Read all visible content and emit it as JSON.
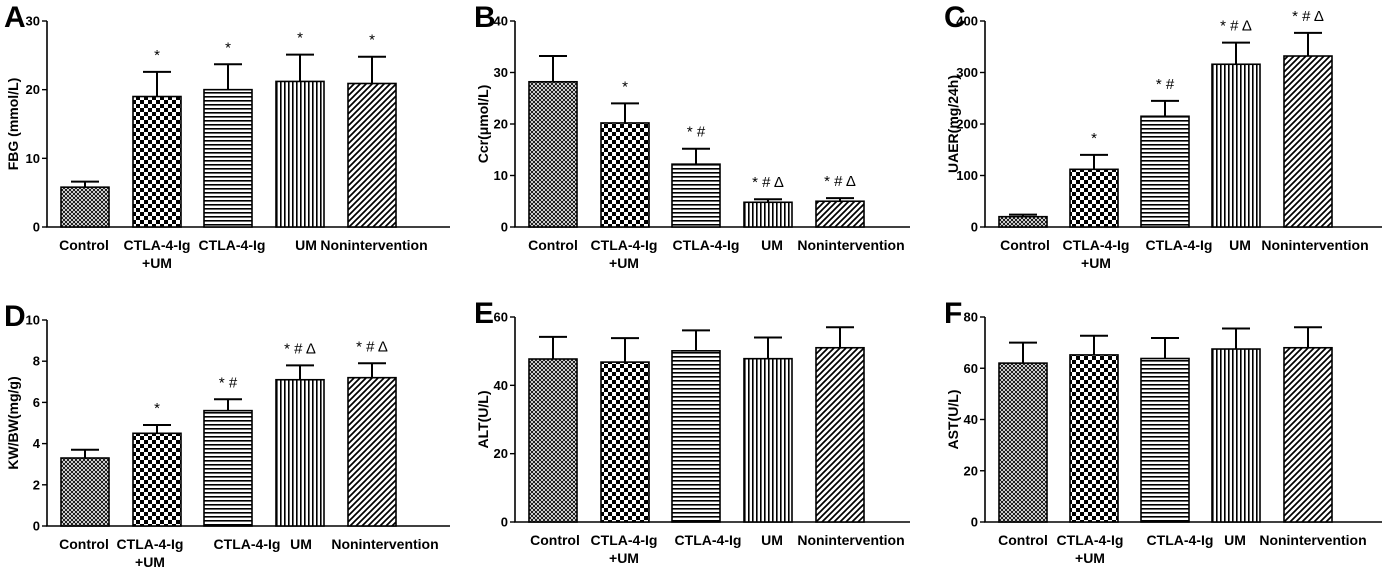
{
  "figure": {
    "legend_markers": {
      "significance_vs_control": "*",
      "significance_vs_ctla": "#",
      "significance_vs_um": "Δ"
    }
  },
  "bar_patterns": [
    "crosshatch-fine",
    "checkerboard",
    "horizontal-lines",
    "vertical-lines",
    "diagonal-lines"
  ],
  "chart_data": [
    {
      "panel": "A",
      "type": "bar",
      "title": "",
      "xlabel": "",
      "ylabel": "FBG (mmol/L)",
      "ylim": [
        0,
        30
      ],
      "yticks": [
        0,
        10,
        20,
        30
      ],
      "categories": [
        [
          "Control"
        ],
        [
          "CTLA-4-Ig",
          "+UM"
        ],
        [
          "CTLA-4-Ig"
        ],
        [
          "UM"
        ],
        [
          "Nonintervention"
        ]
      ],
      "values": [
        5.8,
        19,
        20,
        21.2,
        20.9
      ],
      "errors": [
        0.8,
        3.6,
        3.7,
        3.9,
        3.9
      ],
      "annotations": [
        "",
        "*",
        "*",
        "*",
        "*"
      ]
    },
    {
      "panel": "B",
      "type": "bar",
      "title": "",
      "xlabel": "",
      "ylabel": "Ccr(μmol/L)",
      "ylim": [
        0,
        40
      ],
      "yticks": [
        0,
        10,
        20,
        30,
        40
      ],
      "categories": [
        [
          "Control"
        ],
        [
          "CTLA-4-Ig",
          "+UM"
        ],
        [
          "CTLA-4-Ig"
        ],
        [
          "UM"
        ],
        [
          "Nonintervention"
        ]
      ],
      "values": [
        28.2,
        20.2,
        12.2,
        4.8,
        5
      ],
      "errors": [
        5,
        3.8,
        3,
        0.6,
        0.6
      ],
      "annotations": [
        "",
        "*",
        "*  #",
        "* # Δ",
        "* # Δ"
      ]
    },
    {
      "panel": "C",
      "type": "bar",
      "title": "",
      "xlabel": "",
      "ylabel": "UAER(mg/24h)",
      "ylim": [
        0,
        400
      ],
      "yticks": [
        0,
        100,
        200,
        300,
        400
      ],
      "categories": [
        [
          "Control"
        ],
        [
          "CTLA-4-Ig",
          "+UM"
        ],
        [
          "CTLA-4-Ig"
        ],
        [
          "UM"
        ],
        [
          "Nonintervention"
        ]
      ],
      "values": [
        20,
        112,
        215,
        316,
        332
      ],
      "errors": [
        4,
        28,
        30,
        42,
        45
      ],
      "annotations": [
        "",
        "*",
        "*  #",
        "* # Δ",
        "* # Δ"
      ]
    },
    {
      "panel": "D",
      "type": "bar",
      "title": "",
      "xlabel": "",
      "ylabel": "KW/BW(mg/g)",
      "ylim": [
        0,
        10
      ],
      "yticks": [
        0,
        2,
        4,
        6,
        8,
        10
      ],
      "categories": [
        [
          "Control"
        ],
        [
          "CTLA-4-Ig",
          "+UM"
        ],
        [
          "CTLA-4-Ig"
        ],
        [
          "UM"
        ],
        [
          "Nonintervention"
        ]
      ],
      "values": [
        3.3,
        4.5,
        5.6,
        7.1,
        7.2
      ],
      "errors": [
        0.4,
        0.4,
        0.55,
        0.7,
        0.7
      ],
      "annotations": [
        "",
        "*",
        "*  #",
        "* # Δ",
        "* # Δ"
      ]
    },
    {
      "panel": "E",
      "type": "bar",
      "title": "",
      "xlabel": "",
      "ylabel": "ALT(U/L)",
      "ylim": [
        0,
        60
      ],
      "yticks": [
        0,
        20,
        40,
        60
      ],
      "categories": [
        [
          "Control"
        ],
        [
          "CTLA-4-Ig",
          "+UM"
        ],
        [
          "CTLA-4-Ig"
        ],
        [
          "UM"
        ],
        [
          "Nonintervention"
        ]
      ],
      "values": [
        47.7,
        46.8,
        50.1,
        47.8,
        51
      ],
      "errors": [
        6.5,
        7,
        6,
        6.2,
        6
      ],
      "annotations": [
        "",
        "",
        "",
        "",
        ""
      ]
    },
    {
      "panel": "F",
      "type": "bar",
      "title": "",
      "xlabel": "",
      "ylabel": "AST(U/L)",
      "ylim": [
        0,
        80
      ],
      "yticks": [
        0,
        20,
        40,
        60,
        80
      ],
      "categories": [
        [
          "Control"
        ],
        [
          "CTLA-4-Ig",
          "+UM"
        ],
        [
          "CTLA-4-Ig"
        ],
        [
          "UM"
        ],
        [
          "Nonintervention"
        ]
      ],
      "values": [
        62,
        65.2,
        63.8,
        67.5,
        68
      ],
      "errors": [
        8,
        7.5,
        8,
        8,
        8
      ],
      "annotations": [
        "",
        "",
        "",
        "",
        ""
      ]
    }
  ]
}
